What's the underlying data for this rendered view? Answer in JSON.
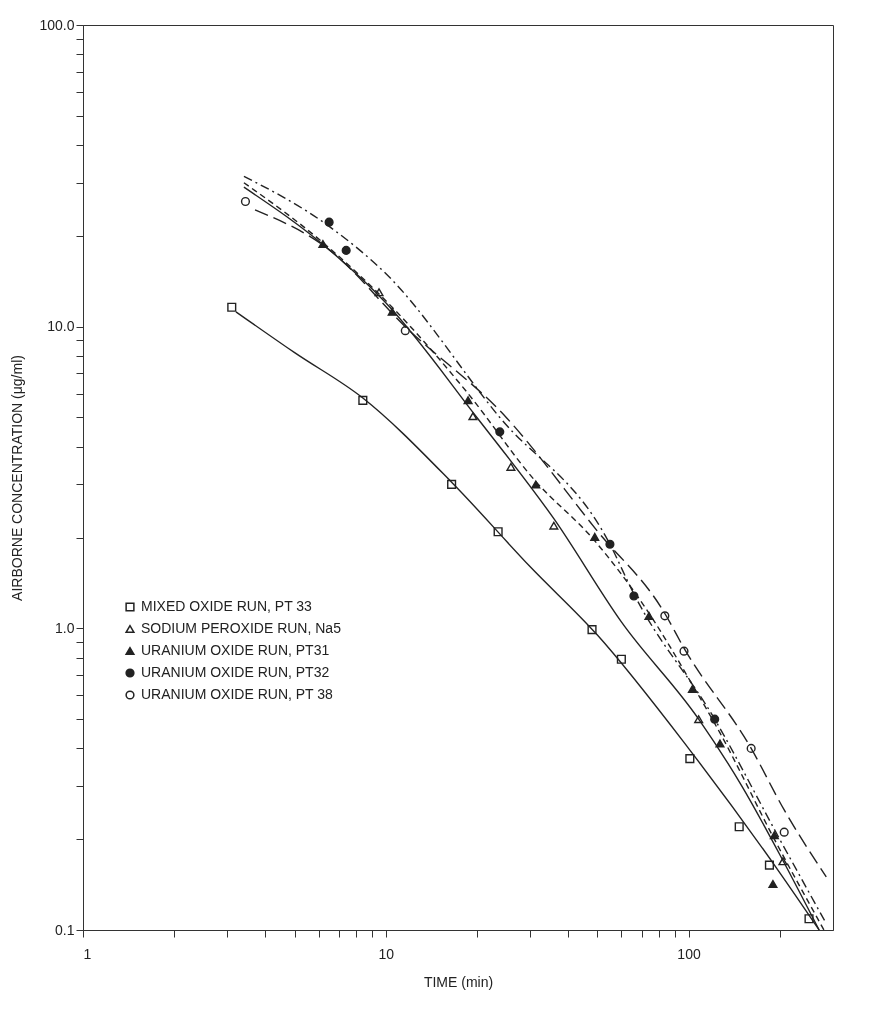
{
  "chart_data": {
    "type": "scatter",
    "xlabel": "TIME (min)",
    "ylabel": "AIRBORNE CONCENTRATION (μg/ml)",
    "log": "xy",
    "grid": false,
    "legend": "bottom left",
    "xlim": [
      1,
      300
    ],
    "ylim": [
      0.1,
      100
    ],
    "xticks": [
      1,
      {
        "value": 2,
        "label": null
      },
      {
        "value": 3,
        "label": null
      },
      {
        "value": 4,
        "label": null
      },
      {
        "value": 5,
        "label": null
      },
      {
        "value": 6,
        "label": null
      },
      {
        "value": 7,
        "label": null
      },
      {
        "value": 8,
        "label": null
      },
      {
        "value": 9,
        "label": null
      },
      10,
      {
        "value": 20,
        "label": null
      },
      {
        "value": 30,
        "label": null
      },
      {
        "value": 40,
        "label": null
      },
      {
        "value": 50,
        "label": null
      },
      {
        "value": 60,
        "label": null
      },
      {
        "value": 70,
        "label": null
      },
      {
        "value": 80,
        "label": null
      },
      {
        "value": 90,
        "label": null
      },
      100,
      {
        "value": 200,
        "label": null
      }
    ],
    "yticks": [
      {
        "value": 0.1,
        "label": "0.1"
      },
      {
        "value": 0.2,
        "label": null
      },
      {
        "value": 0.3,
        "label": null
      },
      {
        "value": 0.4,
        "label": null
      },
      {
        "value": 0.5,
        "label": null
      },
      {
        "value": 0.6,
        "label": null
      },
      {
        "value": 0.7,
        "label": null
      },
      {
        "value": 0.8,
        "label": null
      },
      {
        "value": 0.9,
        "label": null
      },
      {
        "value": 1,
        "label": "1.0"
      },
      {
        "value": 2,
        "label": null
      },
      {
        "value": 3,
        "label": null
      },
      {
        "value": 4,
        "label": null
      },
      {
        "value": 5,
        "label": null
      },
      {
        "value": 6,
        "label": null
      },
      {
        "value": 7,
        "label": null
      },
      {
        "value": 8,
        "label": null
      },
      {
        "value": 9,
        "label": null
      },
      {
        "value": 10,
        "label": "10.0"
      },
      {
        "value": 20,
        "label": null
      },
      {
        "value": 30,
        "label": null
      },
      {
        "value": 40,
        "label": null
      },
      {
        "value": 50,
        "label": null
      },
      {
        "value": 60,
        "label": null
      },
      {
        "value": 70,
        "label": null
      },
      {
        "value": 80,
        "label": null
      },
      {
        "value": 90,
        "label": null
      },
      {
        "value": 100,
        "label": "100.0"
      }
    ],
    "series": [
      {
        "name": "MIXED OXIDE RUN, PT 33",
        "color": "#ffffff",
        "marker": "square",
        "x": [
          3.1,
          8.4,
          16.5,
          23.5,
          48,
          60,
          101,
          147,
          185,
          250
        ],
        "values": [
          11.6,
          5.7,
          3.0,
          2.09,
          0.99,
          0.79,
          0.37,
          0.22,
          0.164,
          0.109
        ]
      },
      {
        "name": "SODIUM PEROXIDE RUN, Na5",
        "color": "#ffffff",
        "marker": "triangle",
        "x": [
          9.5,
          19.4,
          25.9,
          35.9,
          108,
          205
        ],
        "values": [
          13,
          5.05,
          3.43,
          2.19,
          0.5,
          0.169
        ]
      },
      {
        "name": "URANIUM OXIDE RUN, PT31",
        "color": "#222222",
        "marker": "triangle",
        "x": [
          6.2,
          10.5,
          18.7,
          31.3,
          49,
          74,
          103,
          127,
          192,
          190
        ],
        "values": [
          18.8,
          11.2,
          5.7,
          3.0,
          2.01,
          1.1,
          0.63,
          0.415,
          0.206,
          0.142
        ]
      },
      {
        "name": "URANIUM OXIDE RUN, PT32",
        "color": "#222222",
        "marker": "circle",
        "x": [
          6.5,
          7.4,
          23.8,
          55,
          66,
          122
        ],
        "values": [
          22.2,
          17.9,
          4.48,
          1.9,
          1.28,
          0.5
        ]
      },
      {
        "name": "URANIUM OXIDE RUN, PT 38",
        "color": "#ffffff",
        "marker": "circle",
        "x": [
          3.44,
          11.6,
          83.5,
          96.6,
          161,
          207
        ],
        "values": [
          26,
          9.7,
          1.1,
          0.84,
          0.4,
          0.211
        ]
      },
      {
        "type": "line",
        "color": "#222222",
        "line_style": "solid",
        "x": [
          3.2,
          5,
          8.4,
          16.5,
          30,
          50,
          100,
          200,
          270
        ],
        "values": [
          11.2,
          8.2,
          5.8,
          3.05,
          1.6,
          0.95,
          0.4,
          0.155,
          0.1
        ]
      },
      {
        "type": "line",
        "color": "#222222",
        "line_style": "solid",
        "x": [
          3.4,
          6.5,
          10,
          20,
          36,
          60,
          108,
          150,
          205,
          270
        ],
        "values": [
          29,
          18,
          12,
          5,
          2.3,
          1.05,
          0.5,
          0.3,
          0.17,
          0.1
        ]
      },
      {
        "type": "line",
        "color": "#222222",
        "line_style": "dashed",
        "x": [
          3.4,
          6.2,
          10.5,
          18.7,
          31,
          49,
          75,
          103,
          127,
          192,
          280
        ],
        "values": [
          30,
          19,
          11.6,
          6,
          3.1,
          1.95,
          1.1,
          0.65,
          0.45,
          0.2,
          0.1
        ]
      },
      {
        "type": "line",
        "color": "#222222",
        "line_style": "dashdot",
        "x": [
          3.4,
          6.5,
          10,
          23.8,
          55,
          66,
          122,
          200,
          285
        ],
        "values": [
          31.5,
          21.5,
          15,
          5,
          1.9,
          1.3,
          0.5,
          0.2,
          0.105
        ]
      },
      {
        "type": "line",
        "color": "#222222",
        "line_style": "longdash",
        "x": [
          3.7,
          6.5,
          11.6,
          25,
          50,
          83.5,
          96.6,
          161,
          207,
          285
        ],
        "values": [
          24.4,
          18,
          10,
          5,
          2.1,
          1.12,
          0.86,
          0.4,
          0.25,
          0.15
        ]
      }
    ]
  }
}
